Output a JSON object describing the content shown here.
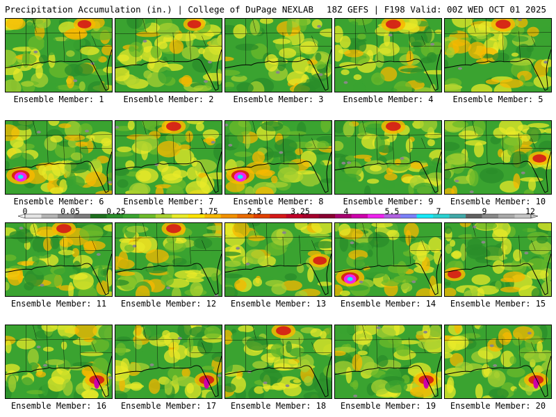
{
  "header": {
    "title": "Precipitation Accumulation (in.) | College of DuPage NEXLAB",
    "run_info": "18Z GEFS | F198 Valid: 00Z WED OCT 01 2025"
  },
  "panels": [
    {
      "member": 1,
      "label": "Ensemble Member: 1",
      "wet_region": "northeast"
    },
    {
      "member": 2,
      "label": "Ensemble Member: 2",
      "wet_region": "northeast"
    },
    {
      "member": 3,
      "label": "Ensemble Member: 3",
      "wet_region": "none"
    },
    {
      "member": 4,
      "label": "Ensemble Member: 4",
      "wet_region": "north"
    },
    {
      "member": 5,
      "label": "Ensemble Member: 5",
      "wet_region": "north"
    },
    {
      "member": 6,
      "label": "Ensemble Member: 6",
      "wet_region": "west-coast"
    },
    {
      "member": 7,
      "label": "Ensemble Member: 7",
      "wet_region": "north"
    },
    {
      "member": 8,
      "label": "Ensemble Member: 8",
      "wet_region": "west-coast"
    },
    {
      "member": 9,
      "label": "Ensemble Member: 9",
      "wet_region": "north"
    },
    {
      "member": 10,
      "label": "Ensemble Member: 10",
      "wet_region": "east-coast"
    },
    {
      "member": 11,
      "label": "Ensemble Member: 11",
      "wet_region": "north"
    },
    {
      "member": 12,
      "label": "Ensemble Member: 12",
      "wet_region": "north"
    },
    {
      "member": 13,
      "label": "Ensemble Member: 13",
      "wet_region": "east-coast"
    },
    {
      "member": 14,
      "label": "Ensemble Member: 14",
      "wet_region": "west-coast"
    },
    {
      "member": 15,
      "label": "Ensemble Member: 15",
      "wet_region": "west"
    },
    {
      "member": 16,
      "label": "Ensemble Member: 16",
      "wet_region": "florida"
    },
    {
      "member": 17,
      "label": "Ensemble Member: 17",
      "wet_region": "florida"
    },
    {
      "member": 18,
      "label": "Ensemble Member: 18",
      "wet_region": "north"
    },
    {
      "member": 19,
      "label": "Ensemble Member: 19",
      "wet_region": "florida"
    },
    {
      "member": 20,
      "label": "Ensemble Member: 20",
      "wet_region": "florida"
    }
  ],
  "legend": {
    "tick_labels": [
      "0",
      "0.05",
      "0.25",
      "1",
      "1.75",
      "2.5",
      "3.25",
      "4",
      "5.5",
      "7",
      "9",
      "12"
    ],
    "colors": [
      "#e4e4e4",
      "#b4b4b4",
      "#8c8c8c",
      "#7a7a7a",
      "#1e6e1e",
      "#2a8c2a",
      "#3aa330",
      "#6cba2a",
      "#a8d030",
      "#e8ea28",
      "#fbe200",
      "#f7b800",
      "#f19000",
      "#e96a00",
      "#e04000",
      "#d41818",
      "#c00028",
      "#a4002c",
      "#880030",
      "#a6006e",
      "#cc00aa",
      "#ee22ee",
      "#b060e0",
      "#7a80f8",
      "#18e8f8",
      "#2ad0d0",
      "#40a8a8",
      "#606060",
      "#888888",
      "#a8a8a8",
      "#c4c4c4"
    ],
    "levels": [
      0,
      0.01,
      0.05,
      0.1,
      0.15,
      0.25,
      0.5,
      0.75,
      1,
      1.25,
      1.5,
      1.75,
      2,
      2.25,
      2.5,
      2.75,
      3,
      3.25,
      3.5,
      3.75,
      4,
      5,
      5.5,
      6,
      7,
      8,
      9,
      10,
      11,
      12,
      15
    ]
  }
}
